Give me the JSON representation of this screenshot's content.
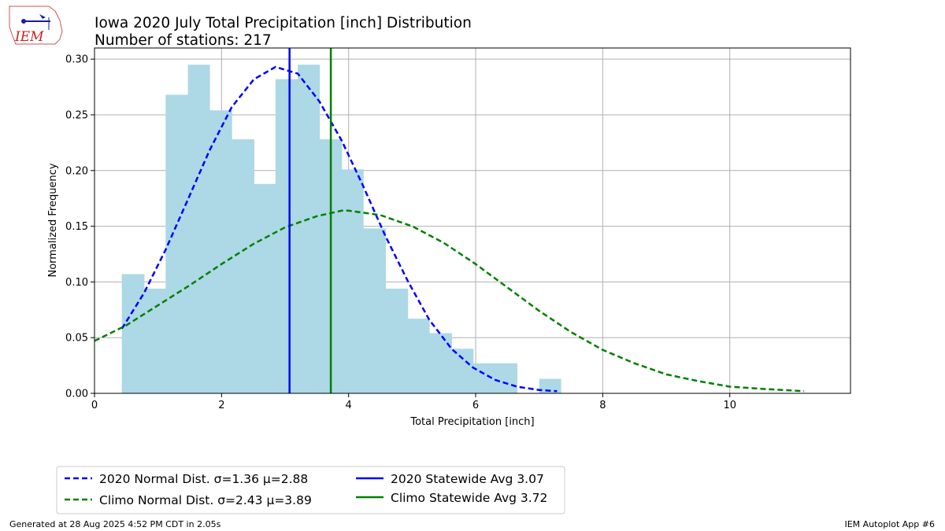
{
  "logo": {
    "text": "IEM"
  },
  "footer": {
    "generated": "Generated at 28 Aug 2025 4:52 PM CDT in 2.05s",
    "app": "IEM Autoplot App #6"
  },
  "chart_data": {
    "type": "bar",
    "title": "Iowa 2020 July Total Precipitation [inch] Distribution",
    "subtitle": "Number of stations: 217",
    "xlabel": "Total Precipitation [inch]",
    "ylabel": "Normalized Frequency",
    "xlim": [
      0,
      11.9
    ],
    "ylim": [
      0,
      0.31
    ],
    "xticks": [
      0,
      2,
      4,
      6,
      8,
      10
    ],
    "yticks": [
      0.0,
      0.05,
      0.1,
      0.15,
      0.2,
      0.25,
      0.3
    ],
    "grid": true,
    "legend_position": "bottom-left, outside plot",
    "histogram": {
      "color": "#add8e6",
      "bins": [
        {
          "x0": 0.43,
          "x1": 0.78,
          "value": 0.107
        },
        {
          "x0": 0.78,
          "x1": 1.12,
          "value": 0.094
        },
        {
          "x0": 1.12,
          "x1": 1.47,
          "value": 0.268
        },
        {
          "x0": 1.47,
          "x1": 1.81,
          "value": 0.295
        },
        {
          "x0": 1.81,
          "x1": 2.16,
          "value": 0.254
        },
        {
          "x0": 2.16,
          "x1": 2.51,
          "value": 0.228
        },
        {
          "x0": 2.51,
          "x1": 2.85,
          "value": 0.188
        },
        {
          "x0": 2.85,
          "x1": 3.2,
          "value": 0.282
        },
        {
          "x0": 3.2,
          "x1": 3.54,
          "value": 0.295
        },
        {
          "x0": 3.54,
          "x1": 3.89,
          "value": 0.228
        },
        {
          "x0": 3.89,
          "x1": 4.23,
          "value": 0.201
        },
        {
          "x0": 4.23,
          "x1": 4.58,
          "value": 0.148
        },
        {
          "x0": 4.58,
          "x1": 4.93,
          "value": 0.094
        },
        {
          "x0": 4.93,
          "x1": 5.27,
          "value": 0.067
        },
        {
          "x0": 5.27,
          "x1": 5.62,
          "value": 0.054
        },
        {
          "x0": 5.62,
          "x1": 5.96,
          "value": 0.04
        },
        {
          "x0": 5.96,
          "x1": 6.31,
          "value": 0.027
        },
        {
          "x0": 6.31,
          "x1": 6.65,
          "value": 0.027
        },
        {
          "x0": 6.65,
          "x1": 7.0,
          "value": 0.0
        },
        {
          "x0": 7.0,
          "x1": 7.34,
          "value": 0.013
        }
      ]
    },
    "series": [
      {
        "name": "2020 Normal Dist. σ=1.36 μ=2.88",
        "style": "dashed",
        "color": "#0000ff",
        "x": [
          0.43,
          0.78,
          1.12,
          1.47,
          1.81,
          2.16,
          2.51,
          2.85,
          3.2,
          3.54,
          3.89,
          4.23,
          4.58,
          4.93,
          5.27,
          5.62,
          5.96,
          6.31,
          6.65,
          7.0,
          7.28
        ],
        "y": [
          0.058,
          0.09,
          0.129,
          0.174,
          0.218,
          0.257,
          0.282,
          0.293,
          0.287,
          0.262,
          0.227,
          0.186,
          0.141,
          0.101,
          0.066,
          0.04,
          0.023,
          0.012,
          0.006,
          0.003,
          0.002
        ]
      },
      {
        "name": "Climo Normal Dist. σ=2.43 μ=3.89",
        "style": "dashed",
        "color": "#008000",
        "x": [
          0.0,
          0.5,
          1.0,
          1.5,
          2.0,
          2.5,
          3.0,
          3.5,
          3.89,
          4.0,
          4.5,
          5.0,
          5.5,
          6.0,
          6.5,
          7.0,
          7.5,
          8.0,
          8.5,
          9.0,
          9.5,
          10.0,
          10.5,
          11.17
        ],
        "y": [
          0.047,
          0.061,
          0.079,
          0.097,
          0.116,
          0.134,
          0.149,
          0.159,
          0.164,
          0.164,
          0.16,
          0.15,
          0.135,
          0.116,
          0.095,
          0.074,
          0.055,
          0.039,
          0.027,
          0.017,
          0.011,
          0.006,
          0.004,
          0.002
        ]
      },
      {
        "name": "2020 Statewide Avg 3.07",
        "style": "vline",
        "color": "#0000ff",
        "x": 3.07
      },
      {
        "name": "Climo Statewide Avg 3.72",
        "style": "vline",
        "color": "#008000",
        "x": 3.72
      }
    ]
  }
}
